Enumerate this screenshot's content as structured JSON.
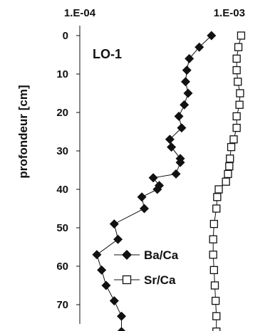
{
  "chart_data": {
    "type": "scatter",
    "panel_label": "LO-1",
    "ylabel": "profondeur [cm]",
    "xscale": "log",
    "xlim": [
      0.0001,
      0.002
    ],
    "ylim": [
      0,
      78
    ],
    "y_inverted": true,
    "xticks": [
      {
        "value": 0.0001,
        "label": "1.E-04"
      },
      {
        "value": 0.001,
        "label": "1.E-03"
      }
    ],
    "yticks": [
      0,
      10,
      20,
      30,
      40,
      50,
      60,
      70
    ],
    "legend_position": "bottom-center",
    "series": [
      {
        "name": "Ba/Ca",
        "marker": "filled-diamond",
        "color": "#111111",
        "points": [
          [
            0.00076,
            0
          ],
          [
            0.00063,
            3
          ],
          [
            0.00054,
            6
          ],
          [
            0.00052,
            9
          ],
          [
            0.00051,
            12
          ],
          [
            0.00053,
            15
          ],
          [
            0.0005,
            18
          ],
          [
            0.00046,
            21
          ],
          [
            0.00048,
            24
          ],
          [
            0.0004,
            27
          ],
          [
            0.00041,
            29
          ],
          [
            0.00047,
            32
          ],
          [
            0.00047,
            33
          ],
          [
            0.00044,
            36
          ],
          [
            0.00031,
            37
          ],
          [
            0.00034,
            39
          ],
          [
            0.00033,
            40
          ],
          [
            0.00026,
            42
          ],
          [
            0.00027,
            45
          ],
          [
            0.00017,
            49
          ],
          [
            0.00018,
            53
          ],
          [
            0.00013,
            57
          ],
          [
            0.00014,
            61
          ],
          [
            0.00015,
            65
          ],
          [
            0.00017,
            69
          ],
          [
            0.00019,
            73
          ],
          [
            0.00019,
            77
          ]
        ]
      },
      {
        "name": "Sr/Ca",
        "marker": "open-square",
        "color": "#111111",
        "points": [
          [
            0.0012,
            0
          ],
          [
            0.00115,
            3
          ],
          [
            0.00112,
            6
          ],
          [
            0.00112,
            9
          ],
          [
            0.00114,
            12
          ],
          [
            0.00118,
            15
          ],
          [
            0.00117,
            18
          ],
          [
            0.00112,
            21
          ],
          [
            0.00112,
            24
          ],
          [
            0.00107,
            27
          ],
          [
            0.00103,
            29
          ],
          [
            0.00101,
            32
          ],
          [
            0.001,
            34
          ],
          [
            0.00098,
            36
          ],
          [
            0.00095,
            38
          ],
          [
            0.00085,
            40
          ],
          [
            0.00083,
            42
          ],
          [
            0.00082,
            45
          ],
          [
            0.00079,
            49
          ],
          [
            0.00078,
            53
          ],
          [
            0.00078,
            57
          ],
          [
            0.00079,
            61
          ],
          [
            0.0008,
            65
          ],
          [
            0.00081,
            69
          ],
          [
            0.00082,
            73
          ],
          [
            0.00082,
            77
          ]
        ]
      }
    ]
  }
}
